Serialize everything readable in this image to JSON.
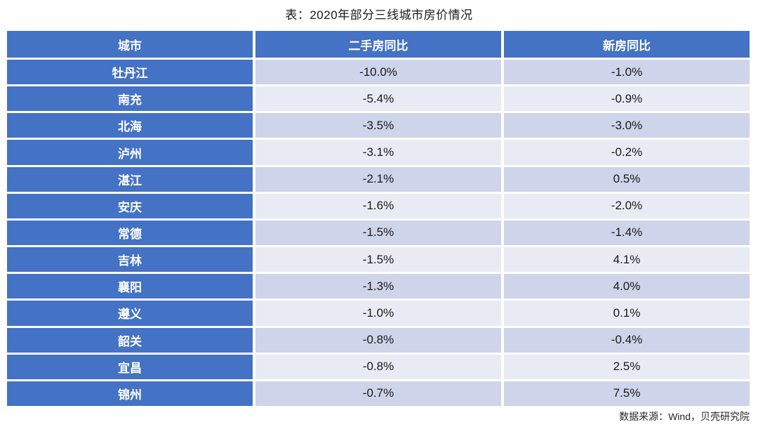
{
  "title": "表：2020年部分三线城市房价情况",
  "source": "数据来源：Wind，贝壳研究院",
  "table": {
    "headers": [
      "城市",
      "二手房同比",
      "新房同比"
    ],
    "rows": [
      {
        "city": "牡丹江",
        "second_hand_yoy": "-10.0%",
        "new_home_yoy": "-1.0%"
      },
      {
        "city": "南充",
        "second_hand_yoy": "-5.4%",
        "new_home_yoy": "-0.9%"
      },
      {
        "city": "北海",
        "second_hand_yoy": "-3.5%",
        "new_home_yoy": "-3.0%"
      },
      {
        "city": "泸州",
        "second_hand_yoy": "-3.1%",
        "new_home_yoy": "-0.2%"
      },
      {
        "city": "湛江",
        "second_hand_yoy": "-2.1%",
        "new_home_yoy": "0.5%"
      },
      {
        "city": "安庆",
        "second_hand_yoy": "-1.6%",
        "new_home_yoy": "-2.0%"
      },
      {
        "city": "常德",
        "second_hand_yoy": "-1.5%",
        "new_home_yoy": "-1.4%"
      },
      {
        "city": "吉林",
        "second_hand_yoy": "-1.5%",
        "new_home_yoy": "4.1%"
      },
      {
        "city": "襄阳",
        "second_hand_yoy": "-1.3%",
        "new_home_yoy": "4.0%"
      },
      {
        "city": "遵义",
        "second_hand_yoy": "-1.0%",
        "new_home_yoy": "0.1%"
      },
      {
        "city": "韶关",
        "second_hand_yoy": "-0.8%",
        "new_home_yoy": "-0.4%"
      },
      {
        "city": "宜昌",
        "second_hand_yoy": "-0.8%",
        "new_home_yoy": "2.5%"
      },
      {
        "city": "锦州",
        "second_hand_yoy": "-0.7%",
        "new_home_yoy": "7.5%"
      }
    ]
  },
  "colors": {
    "header_bg": "#4472c4",
    "header_text": "#ffffff",
    "row_odd_bg": "#ced4e9",
    "row_even_bg": "#e9ebf4",
    "value_text": "#1a1a1a"
  },
  "chart_data": {
    "type": "table",
    "title": "表：2020年部分三线城市房价情况",
    "columns": [
      "城市",
      "二手房同比",
      "新房同比"
    ],
    "unit": "%",
    "rows": [
      [
        "牡丹江",
        -10.0,
        -1.0
      ],
      [
        "南充",
        -5.4,
        -0.9
      ],
      [
        "北海",
        -3.5,
        -3.0
      ],
      [
        "泸州",
        -3.1,
        -0.2
      ],
      [
        "湛江",
        -2.1,
        0.5
      ],
      [
        "安庆",
        -1.6,
        -2.0
      ],
      [
        "常德",
        -1.5,
        -1.4
      ],
      [
        "吉林",
        -1.5,
        4.1
      ],
      [
        "襄阳",
        -1.3,
        4.0
      ],
      [
        "遵义",
        -1.0,
        0.1
      ],
      [
        "韶关",
        -0.8,
        -0.4
      ],
      [
        "宜昌",
        -0.8,
        2.5
      ],
      [
        "锦州",
        -0.7,
        7.5
      ]
    ],
    "source": "数据来源：Wind，贝壳研究院"
  }
}
